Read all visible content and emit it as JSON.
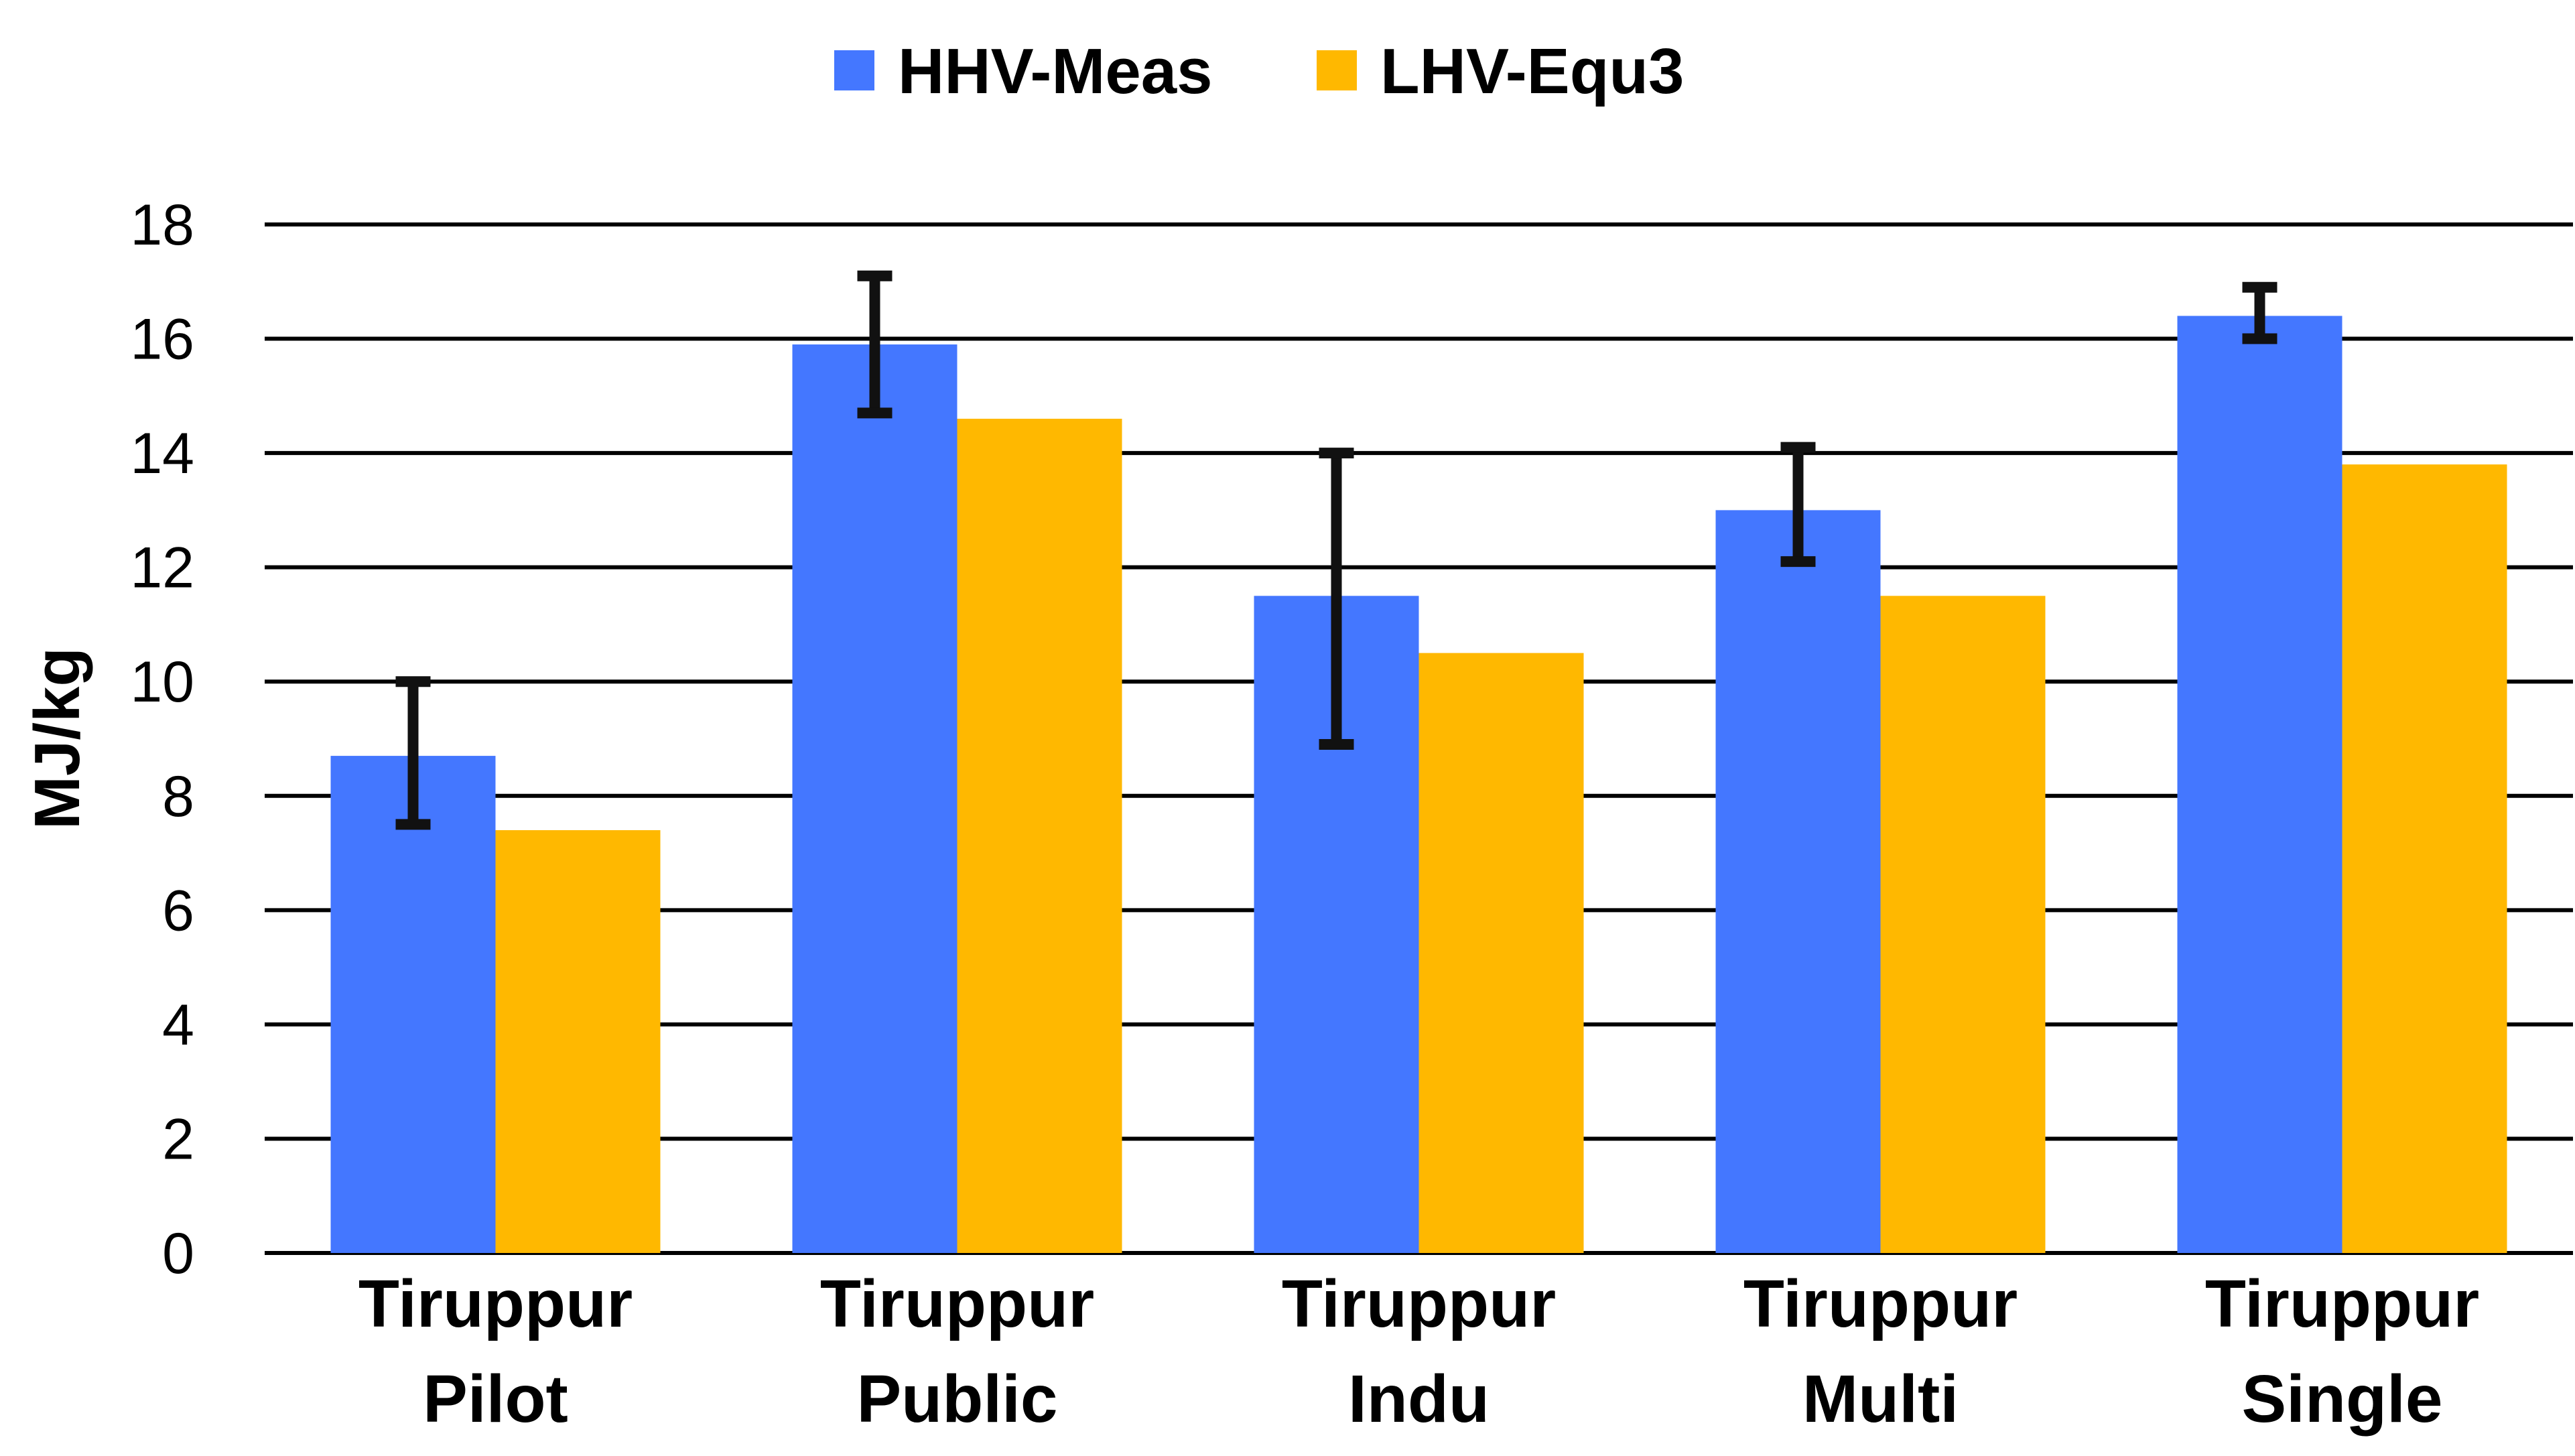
{
  "chart_data": {
    "type": "bar",
    "title": "",
    "xlabel": "",
    "ylabel": "MJ/kg",
    "ylim": [
      0,
      18
    ],
    "yticks": [
      0,
      2,
      4,
      6,
      8,
      10,
      12,
      14,
      16,
      18
    ],
    "grid": true,
    "legend_position": "top-center",
    "categories": [
      [
        "Tiruppur",
        "Pilot"
      ],
      [
        "Tiruppur",
        "Public"
      ],
      [
        "Tiruppur",
        "Indu"
      ],
      [
        "Tiruppur",
        "Multi"
      ],
      [
        "Tiruppur",
        "Single"
      ]
    ],
    "series": [
      {
        "name": "HHV-Meas",
        "color": "#4477FF",
        "values": [
          8.7,
          15.9,
          11.5,
          13.0,
          16.4
        ],
        "error_low": [
          7.5,
          14.7,
          8.9,
          12.1,
          16.0
        ],
        "error_high": [
          10.0,
          17.1,
          14.0,
          14.1,
          16.9
        ]
      },
      {
        "name": "LHV-Equ3",
        "color": "#FFB800",
        "values": [
          7.4,
          14.6,
          10.5,
          11.5,
          13.8
        ]
      }
    ]
  }
}
